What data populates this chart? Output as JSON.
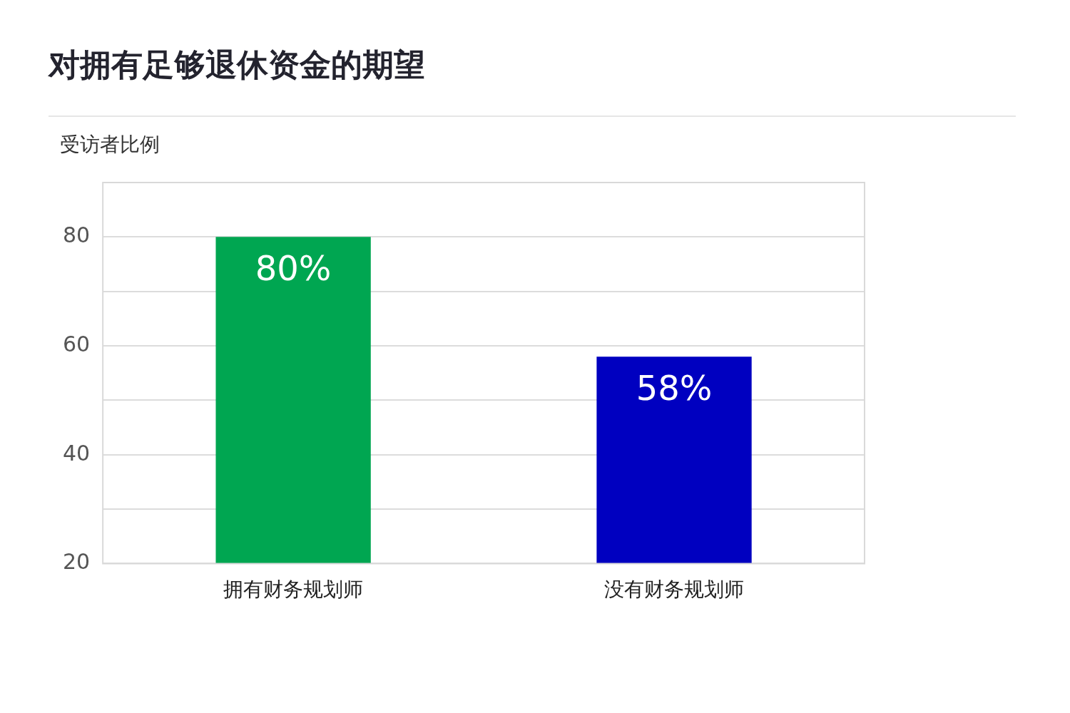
{
  "chart_data": {
    "type": "bar",
    "title": "对拥有足够退休资金的期望",
    "ylabel": "受访者比例",
    "categories": [
      "拥有财务规划师",
      "没有财务规划师"
    ],
    "values": [
      80,
      58
    ],
    "colors": [
      "#00a651",
      "#0000c0"
    ],
    "value_labels": [
      "80%",
      "58%"
    ],
    "ylim": [
      20,
      90
    ],
    "yticks": [
      20,
      {
        "value": 30,
        "label": null
      },
      40,
      {
        "value": 50,
        "label": null
      },
      60,
      {
        "value": 70,
        "label": null
      },
      80
    ],
    "grid": "y",
    "legend": false
  }
}
